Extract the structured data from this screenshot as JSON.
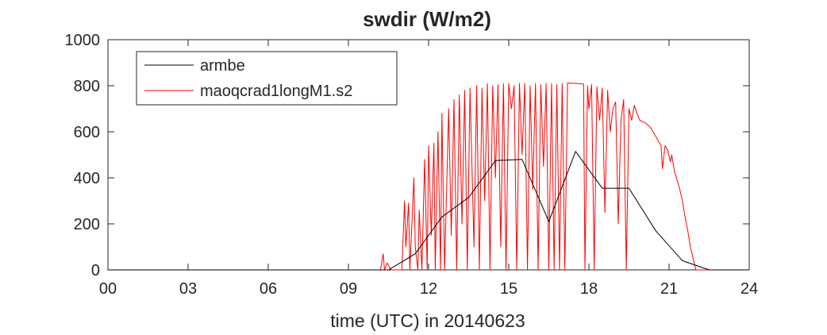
{
  "chart_data": {
    "type": "line",
    "title": "swdir  (W/m2)",
    "xlabel": "time (UTC) in 20140623",
    "ylabel": "",
    "xlim": [
      0,
      24
    ],
    "ylim": [
      0,
      1000
    ],
    "x_ticks": [
      0,
      3,
      6,
      9,
      12,
      15,
      18,
      21,
      24
    ],
    "x_tick_labels": [
      "00",
      "03",
      "06",
      "09",
      "12",
      "15",
      "18",
      "21",
      "24"
    ],
    "y_ticks": [
      0,
      200,
      400,
      600,
      800,
      1000
    ],
    "y_tick_labels": [
      "0",
      "200",
      "400",
      "600",
      "800",
      "1000"
    ],
    "grid": false,
    "legend": {
      "placement": "top-left",
      "entries": [
        "armbe",
        "maoqcrad1longM1.s2"
      ]
    },
    "series": [
      {
        "name": "armbe",
        "color": "#000000",
        "x": [
          0,
          10.5,
          11.5,
          12.5,
          13.5,
          14.5,
          15.5,
          16.5,
          17.5,
          18.5,
          19.5,
          20.5,
          21.5,
          22.5,
          24
        ],
        "y": [
          0,
          0,
          70,
          230,
          315,
          475,
          480,
          210,
          515,
          355,
          355,
          170,
          40,
          0,
          0
        ]
      },
      {
        "name": "maoqcrad1longM1.s2",
        "color": "#ff0000",
        "x": [
          0,
          10.2,
          10.3,
          10.35,
          10.45,
          10.6,
          11.0,
          11.1,
          11.15,
          11.25,
          11.3,
          11.45,
          11.5,
          11.6,
          11.65,
          11.75,
          11.85,
          11.95,
          12.0,
          12.1,
          12.2,
          12.25,
          12.35,
          12.45,
          12.5,
          12.6,
          12.75,
          12.85,
          12.95,
          13.05,
          13.15,
          13.25,
          13.35,
          13.45,
          13.55,
          13.7,
          13.8,
          13.9,
          14.0,
          14.1,
          14.2,
          14.3,
          14.4,
          14.5,
          14.6,
          14.7,
          14.8,
          14.9,
          15.0,
          15.1,
          15.2,
          15.3,
          15.4,
          15.5,
          15.6,
          15.7,
          15.8,
          15.9,
          16.0,
          16.1,
          16.2,
          16.3,
          16.4,
          16.5,
          16.6,
          16.7,
          16.8,
          16.9,
          17.0,
          17.1,
          17.2,
          17.5,
          17.8,
          17.85,
          17.95,
          18.0,
          18.1,
          18.2,
          18.3,
          18.4,
          18.5,
          18.6,
          18.7,
          18.8,
          18.9,
          19.0,
          19.1,
          19.2,
          19.3,
          19.4,
          19.5,
          19.6,
          19.7,
          19.8,
          19.9,
          20.1,
          20.3,
          20.5,
          20.6,
          20.7,
          20.75,
          20.85,
          20.95,
          21.05,
          21.1,
          21.2,
          21.3,
          21.4,
          21.5,
          21.6,
          21.7,
          21.8,
          21.9,
          22.0,
          22.5,
          24
        ],
        "y": [
          0,
          0,
          70,
          0,
          30,
          0,
          0,
          300,
          100,
          290,
          0,
          400,
          100,
          0,
          260,
          0,
          480,
          0,
          540,
          150,
          550,
          0,
          600,
          0,
          680,
          0,
          700,
          150,
          740,
          0,
          760,
          200,
          780,
          0,
          790,
          100,
          800,
          0,
          790,
          300,
          810,
          0,
          800,
          400,
          805,
          100,
          810,
          0,
          810,
          700,
          800,
          0,
          810,
          500,
          810,
          0,
          800,
          350,
          810,
          0,
          805,
          450,
          810,
          0,
          810,
          0,
          805,
          0,
          810,
          0,
          812,
          810,
          808,
          0,
          800,
          700,
          805,
          0,
          795,
          650,
          790,
          250,
          780,
          600,
          700,
          730,
          200,
          650,
          740,
          0,
          700,
          650,
          715,
          680,
          650,
          640,
          620,
          580,
          560,
          540,
          440,
          540,
          520,
          470,
          500,
          430,
          390,
          350,
          300,
          230,
          170,
          100,
          50,
          0,
          0,
          0
        ]
      }
    ]
  }
}
